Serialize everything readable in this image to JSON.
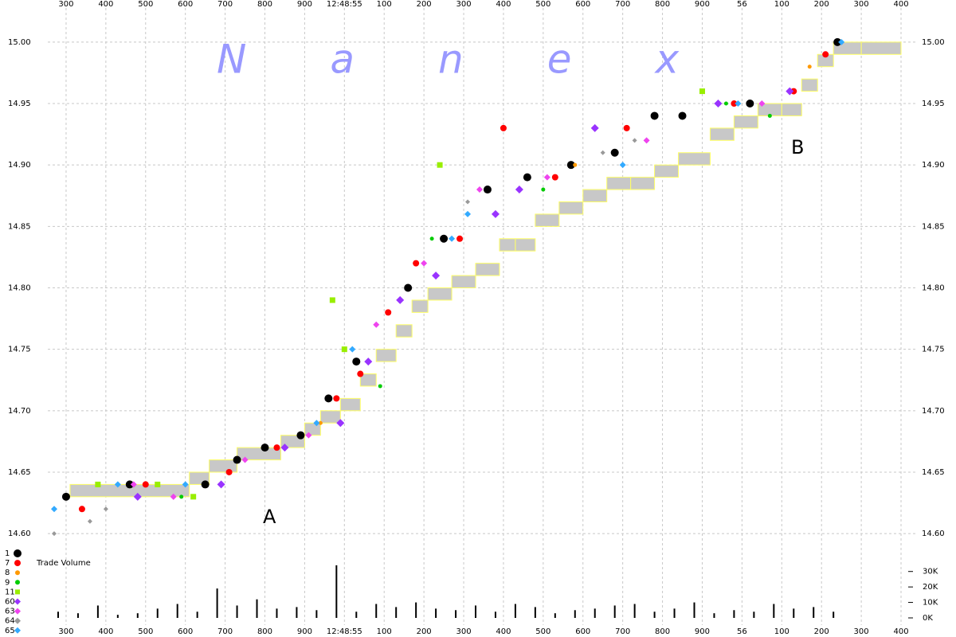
{
  "chart_data": [
    {
      "type": "scatter",
      "watermark": "Nanex",
      "annotations": [
        "A",
        "B"
      ],
      "xlim": [
        -0.46,
        21.18
      ],
      "xticks": [
        {
          "value": 0,
          "label": "300"
        },
        {
          "value": 1,
          "label": "400"
        },
        {
          "value": 2,
          "label": "500"
        },
        {
          "value": 3,
          "label": "600"
        },
        {
          "value": 4,
          "label": "700"
        },
        {
          "value": 5,
          "label": "800"
        },
        {
          "value": 6,
          "label": "900"
        },
        {
          "value": 7,
          "label": "12:48:55"
        },
        {
          "value": 8,
          "label": "100"
        },
        {
          "value": 9,
          "label": "200"
        },
        {
          "value": 10,
          "label": "300"
        },
        {
          "value": 11,
          "label": "400"
        },
        {
          "value": 12,
          "label": "500"
        },
        {
          "value": 13,
          "label": "600"
        },
        {
          "value": 14,
          "label": "700"
        },
        {
          "value": 15,
          "label": "800"
        },
        {
          "value": 16,
          "label": "900"
        },
        {
          "value": 17,
          "label": "56"
        },
        {
          "value": 18,
          "label": "100"
        },
        {
          "value": 19,
          "label": "200"
        },
        {
          "value": 20,
          "label": "300"
        },
        {
          "value": 21,
          "label": "400"
        }
      ],
      "ylim": [
        14.58,
        15.02
      ],
      "yticks": [
        {
          "value": 14.6,
          "label": "14.60"
        },
        {
          "value": 14.65,
          "label": "14.65"
        },
        {
          "value": 14.7,
          "label": "14.70"
        },
        {
          "value": 14.75,
          "label": "14.75"
        },
        {
          "value": 14.8,
          "label": "14.80"
        },
        {
          "value": 14.85,
          "label": "14.85"
        },
        {
          "value": 14.9,
          "label": "14.90"
        },
        {
          "value": 14.95,
          "label": "14.95"
        },
        {
          "value": 15.0,
          "label": "15.00"
        }
      ],
      "grid": true,
      "legend": "lower left",
      "nbbo": {
        "color": "#c8c8c8",
        "edge_color": "#ffff66",
        "edges": [
          0.1,
          3.1,
          3.6,
          4.3,
          5.4,
          6.0,
          6.4,
          6.9,
          7.4,
          7.8,
          8.3,
          8.7,
          9.1,
          9.7,
          10.3,
          10.9,
          11.3,
          11.8,
          12.4,
          13.0,
          13.6,
          14.2,
          14.8,
          15.4,
          16.2,
          16.8,
          17.4,
          18.0,
          18.5,
          18.9,
          19.3,
          20.0,
          21.0
        ],
        "low": [
          14.63,
          14.64,
          14.65,
          14.66,
          14.67,
          14.68,
          14.69,
          14.7,
          14.72,
          14.74,
          14.76,
          14.78,
          14.79,
          14.8,
          14.81,
          14.83,
          14.83,
          14.85,
          14.86,
          14.87,
          14.88,
          14.88,
          14.89,
          14.9,
          14.92,
          14.93,
          14.94,
          14.94,
          14.96,
          14.98,
          14.99,
          14.99
        ],
        "high": [
          14.64,
          14.65,
          14.66,
          14.67,
          14.68,
          14.69,
          14.7,
          14.71,
          14.73,
          14.75,
          14.77,
          14.79,
          14.8,
          14.81,
          14.82,
          14.84,
          14.84,
          14.86,
          14.87,
          14.88,
          14.89,
          14.89,
          14.9,
          14.91,
          14.93,
          14.94,
          14.95,
          14.95,
          14.97,
          14.99,
          15.0,
          15.0
        ]
      },
      "series": [
        {
          "name": "1",
          "color": "#000000",
          "marker": "circle",
          "size": 5,
          "x": [
            0.0,
            1.6,
            3.5,
            4.3,
            5.0,
            5.9,
            6.6,
            7.3,
            8.6,
            9.5,
            10.6,
            11.6,
            12.7,
            13.8,
            14.8,
            15.5,
            17.2,
            19.4
          ],
          "values": [
            14.63,
            14.64,
            14.64,
            14.66,
            14.67,
            14.68,
            14.71,
            14.74,
            14.8,
            14.84,
            14.88,
            14.89,
            14.9,
            14.91,
            14.94,
            14.94,
            14.95,
            15.0
          ]
        },
        {
          "name": "7",
          "color": "#ff0000",
          "marker": "circle",
          "size": 4,
          "x": [
            0.4,
            2.0,
            4.1,
            5.3,
            6.8,
            7.4,
            8.1,
            8.8,
            9.9,
            11.0,
            12.3,
            14.1,
            16.8,
            18.3,
            19.1
          ],
          "values": [
            14.62,
            14.64,
            14.65,
            14.67,
            14.71,
            14.73,
            14.78,
            14.82,
            14.84,
            14.93,
            14.89,
            14.93,
            14.95,
            14.96,
            14.99
          ]
        },
        {
          "name": "8",
          "color": "#ff9900",
          "marker": "circle",
          "size": 2.5,
          "x": [
            6.4,
            12.8,
            18.7
          ],
          "values": [
            14.69,
            14.9,
            14.98
          ]
        },
        {
          "name": "9",
          "color": "#00cc00",
          "marker": "circle",
          "size": 2.5,
          "x": [
            2.9,
            7.9,
            9.2,
            12.0,
            16.6,
            17.7
          ],
          "values": [
            14.63,
            14.72,
            14.84,
            14.88,
            14.95,
            14.94
          ]
        },
        {
          "name": "11",
          "color": "#99ee00",
          "marker": "square",
          "size": 3.5,
          "x": [
            0.8,
            2.3,
            3.2,
            6.7,
            7.0,
            9.4,
            16.0
          ],
          "values": [
            14.64,
            14.64,
            14.63,
            14.79,
            14.75,
            14.9,
            14.96
          ]
        },
        {
          "name": "60",
          "color": "#9933ff",
          "marker": "diamond",
          "size": 5,
          "x": [
            1.8,
            3.9,
            5.5,
            6.9,
            7.6,
            8.4,
            9.3,
            10.8,
            11.4,
            13.3,
            16.4,
            18.2
          ],
          "values": [
            14.63,
            14.64,
            14.67,
            14.69,
            14.74,
            14.79,
            14.81,
            14.86,
            14.88,
            14.93,
            14.95,
            14.96
          ]
        },
        {
          "name": "63",
          "color": "#ee44ee",
          "marker": "diamond",
          "size": 4,
          "x": [
            1.7,
            2.7,
            4.5,
            6.1,
            7.8,
            9.0,
            10.4,
            12.1,
            14.6,
            17.5
          ],
          "values": [
            14.64,
            14.63,
            14.66,
            14.68,
            14.77,
            14.82,
            14.88,
            14.89,
            14.92,
            14.95
          ]
        },
        {
          "name": "64",
          "color": "#999999",
          "marker": "diamond",
          "size": 3,
          "x": [
            -0.3,
            0.6,
            1.0,
            10.1,
            13.5,
            14.3
          ],
          "values": [
            14.6,
            14.61,
            14.62,
            14.87,
            14.91,
            14.92
          ]
        },
        {
          "name": "65",
          "color": "#33aaff",
          "marker": "diamond",
          "size": 4,
          "x": [
            -0.3,
            1.3,
            3.0,
            6.3,
            7.2,
            9.7,
            10.1,
            14.0,
            16.9,
            19.5
          ],
          "values": [
            14.62,
            14.64,
            14.64,
            14.69,
            14.75,
            14.84,
            14.86,
            14.9,
            14.95,
            15.0
          ]
        }
      ]
    },
    {
      "type": "bar",
      "label": "Trade Volume",
      "color": "#000000",
      "xlim": [
        -0.46,
        21.18
      ],
      "xticks": [
        {
          "value": 0,
          "label": "300"
        },
        {
          "value": 1,
          "label": "400"
        },
        {
          "value": 2,
          "label": "500"
        },
        {
          "value": 3,
          "label": "600"
        },
        {
          "value": 4,
          "label": "700"
        },
        {
          "value": 5,
          "label": "800"
        },
        {
          "value": 6,
          "label": "900"
        },
        {
          "value": 7,
          "label": "12:48:55"
        },
        {
          "value": 8,
          "label": "100"
        },
        {
          "value": 9,
          "label": "200"
        },
        {
          "value": 10,
          "label": "300"
        },
        {
          "value": 11,
          "label": "400"
        },
        {
          "value": 12,
          "label": "500"
        },
        {
          "value": 13,
          "label": "600"
        },
        {
          "value": 14,
          "label": "700"
        },
        {
          "value": 15,
          "label": "800"
        },
        {
          "value": 16,
          "label": "900"
        },
        {
          "value": 17,
          "label": "56"
        },
        {
          "value": 18,
          "label": "100"
        },
        {
          "value": 19,
          "label": "200"
        },
        {
          "value": 20,
          "label": "300"
        },
        {
          "value": 21,
          "label": "400"
        }
      ],
      "ylim": [
        0,
        35000
      ],
      "yticks": [
        {
          "value": 0,
          "label": "0K"
        },
        {
          "value": 10000,
          "label": "10K"
        },
        {
          "value": 20000,
          "label": "20K"
        },
        {
          "value": 30000,
          "label": "30K"
        }
      ],
      "x": [
        -0.2,
        0.3,
        0.8,
        1.3,
        1.8,
        2.3,
        2.8,
        3.3,
        3.8,
        4.3,
        4.8,
        5.3,
        5.8,
        6.3,
        6.8,
        7.3,
        7.8,
        8.3,
        8.8,
        9.3,
        9.8,
        10.3,
        10.8,
        11.3,
        11.8,
        12.3,
        12.8,
        13.3,
        13.8,
        14.3,
        14.8,
        15.3,
        15.8,
        16.3,
        16.8,
        17.3,
        17.8,
        18.3,
        18.8,
        19.3
      ],
      "values": [
        4000,
        3000,
        8000,
        2000,
        3000,
        6000,
        9000,
        4000,
        19000,
        8000,
        12000,
        6000,
        7000,
        5000,
        34000,
        4000,
        9000,
        7000,
        10000,
        6000,
        5000,
        8000,
        4000,
        9000,
        7000,
        3000,
        5000,
        6000,
        8000,
        9000,
        4000,
        6000,
        10000,
        3000,
        5000,
        4000,
        9000,
        6000,
        7000,
        4000
      ]
    }
  ]
}
